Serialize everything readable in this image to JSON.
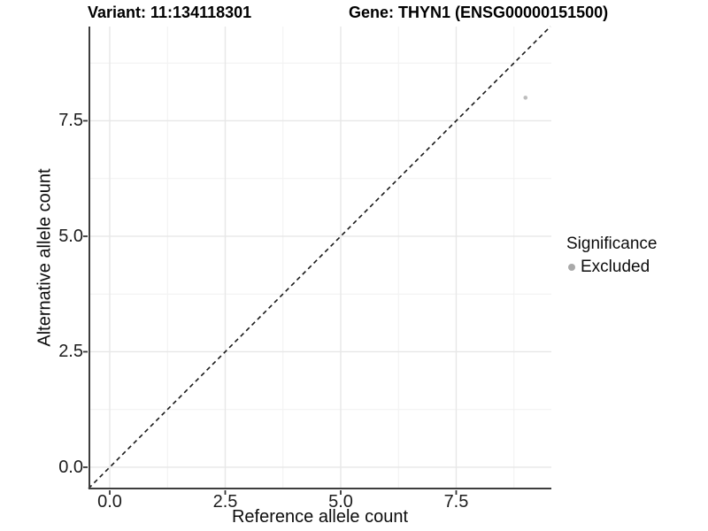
{
  "titles": {
    "variant": "Variant: 11:134118301",
    "gene": "Gene: THYN1 (ENSG00000151500)"
  },
  "legend": {
    "title": "Significance",
    "items": [
      {
        "label": "Excluded",
        "color": "#a9a9a9"
      }
    ]
  },
  "style": {
    "background": "#ffffff",
    "major_grid": "#e7e7e7",
    "minor_grid": "#f1f1f1",
    "axis_line": "#3d3d3d",
    "tick_mark": "#333333",
    "reference_line": "#1a1a1a",
    "point_color": "#bdbdbd"
  },
  "chart_data": {
    "type": "scatter",
    "title": "Variant: 11:134118301    Gene: THYN1 (ENSG00000151500)",
    "xlabel": "Reference allele count",
    "ylabel": "Alternative allele count",
    "xlim": [
      -0.46,
      9.56
    ],
    "ylim": [
      -0.48,
      9.54
    ],
    "x_ticks": [
      0.0,
      2.5,
      5.0,
      7.5
    ],
    "x_tick_labels": [
      "0.0",
      "2.5",
      "5.0",
      "7.5"
    ],
    "y_ticks": [
      0.0,
      2.5,
      5.0,
      7.5
    ],
    "y_tick_labels": [
      "0.0",
      "2.5",
      "5.0",
      "7.5"
    ],
    "x_minor": [
      1.25,
      3.75,
      6.25,
      8.75
    ],
    "y_minor": [
      1.25,
      3.75,
      6.25,
      8.75
    ],
    "grid": true,
    "legend_position": "right",
    "series": [
      {
        "name": "Excluded",
        "color": "#bdbdbd",
        "point_radius": 2.3,
        "points": [
          {
            "x": 9,
            "y": 8
          }
        ]
      }
    ],
    "reference_line": {
      "kind": "identity",
      "slope": 1,
      "intercept": 0,
      "style": "dashed"
    }
  }
}
